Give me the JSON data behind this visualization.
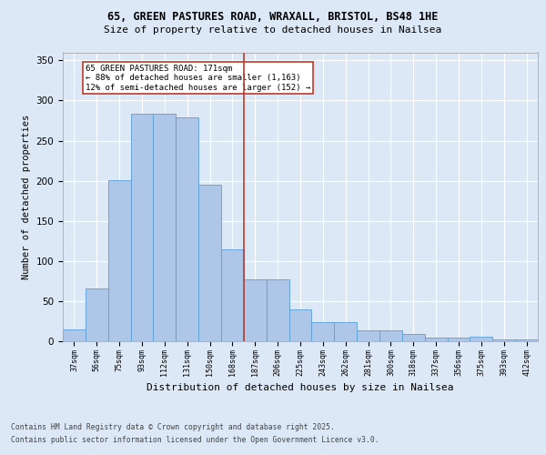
{
  "title_line1": "65, GREEN PASTURES ROAD, WRAXALL, BRISTOL, BS48 1HE",
  "title_line2": "Size of property relative to detached houses in Nailsea",
  "xlabel": "Distribution of detached houses by size in Nailsea",
  "ylabel": "Number of detached properties",
  "categories": [
    "37sqm",
    "56sqm",
    "75sqm",
    "93sqm",
    "112sqm",
    "131sqm",
    "150sqm",
    "168sqm",
    "187sqm",
    "206sqm",
    "225sqm",
    "243sqm",
    "262sqm",
    "281sqm",
    "300sqm",
    "318sqm",
    "337sqm",
    "356sqm",
    "375sqm",
    "393sqm",
    "412sqm"
  ],
  "values": [
    15,
    66,
    201,
    283,
    283,
    279,
    195,
    115,
    77,
    77,
    40,
    24,
    24,
    14,
    14,
    9,
    5,
    5,
    6,
    2,
    2
  ],
  "bar_color": "#aec6e8",
  "bar_edge_color": "#5a9fd4",
  "marker_label_line1": "65 GREEN PASTURES ROAD: 171sqm",
  "marker_label_line2": "← 88% of detached houses are smaller (1,163)",
  "marker_label_line3": "12% of semi-detached houses are larger (152) →",
  "marker_color": "#c0392b",
  "ylim": [
    0,
    360
  ],
  "yticks": [
    0,
    50,
    100,
    150,
    200,
    250,
    300,
    350
  ],
  "footer_line1": "Contains HM Land Registry data © Crown copyright and database right 2025.",
  "footer_line2": "Contains public sector information licensed under the Open Government Licence v3.0.",
  "bg_color": "#dce8f5",
  "plot_bg_color": "#dce8f5"
}
